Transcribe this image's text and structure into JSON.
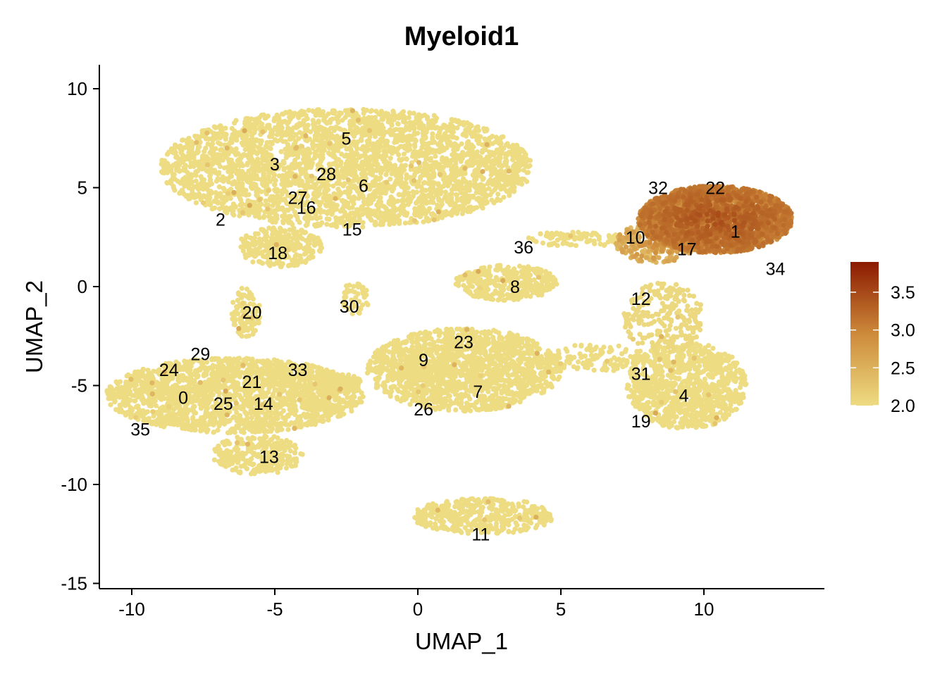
{
  "chart_data": {
    "type": "scatter",
    "title": "Myeloid1",
    "xlabel": "UMAP_1",
    "ylabel": "UMAP_2",
    "xlim": [
      -11,
      14
    ],
    "ylim": [
      -15,
      11
    ],
    "xticks": [
      -10,
      -5,
      0,
      5,
      10
    ],
    "xtick_labels": [
      "-10",
      "-5",
      "0",
      "5",
      "10"
    ],
    "yticks": [
      -15,
      -10,
      -5,
      0,
      5,
      10
    ],
    "ytick_labels": [
      "-15",
      "-10",
      "-5",
      "0",
      "5",
      "10"
    ],
    "grid": false,
    "legend": {
      "position": "right",
      "type": "colorbar",
      "range": [
        2.0,
        3.9
      ],
      "ticks": [
        2.0,
        2.5,
        3.0,
        3.5
      ],
      "tick_labels": [
        "2.0",
        "2.5",
        "3.0",
        "3.5"
      ],
      "colors": [
        "#EEDC82",
        "#CD8A3A",
        "#8B1A00"
      ]
    },
    "clusters": [
      {
        "cx": -2.5,
        "cy": 6.0,
        "rx": 6.5,
        "ry": 3.0,
        "n": 3200,
        "value": 2.0
      },
      {
        "cx": -4.8,
        "cy": 2.0,
        "rx": 1.5,
        "ry": 1.0,
        "n": 300,
        "value": 2.0
      },
      {
        "cx": -6.4,
        "cy": -5.5,
        "rx": 4.5,
        "ry": 1.9,
        "n": 1900,
        "value": 2.0
      },
      {
        "cx": -5.6,
        "cy": -8.5,
        "rx": 1.6,
        "ry": 1.0,
        "n": 280,
        "value": 2.0
      },
      {
        "cx": -6.0,
        "cy": -1.3,
        "rx": 0.5,
        "ry": 1.3,
        "n": 110,
        "value": 2.0
      },
      {
        "cx": -3.4,
        "cy": -4.8,
        "rx": 1.4,
        "ry": 0.5,
        "n": 170,
        "value": 2.0
      },
      {
        "cx": -2.2,
        "cy": -0.6,
        "rx": 0.5,
        "ry": 0.8,
        "n": 45,
        "value": 2.0
      },
      {
        "cx": 0.1,
        "cy": -4.3,
        "rx": 0.9,
        "ry": 0.4,
        "n": 80,
        "value": 2.0
      },
      {
        "cx": 1.6,
        "cy": -4.2,
        "rx": 3.4,
        "ry": 2.1,
        "n": 1500,
        "value": 2.0
      },
      {
        "cx": 3.1,
        "cy": 0.2,
        "rx": 1.8,
        "ry": 0.9,
        "n": 360,
        "value": 2.0
      },
      {
        "cx": 5.5,
        "cy": 2.4,
        "rx": 1.8,
        "ry": 0.4,
        "n": 90,
        "value": 2.0
      },
      {
        "cx": 2.3,
        "cy": -11.6,
        "rx": 2.5,
        "ry": 0.9,
        "n": 420,
        "value": 2.0
      },
      {
        "cx": 8.6,
        "cy": -1.6,
        "rx": 1.4,
        "ry": 1.8,
        "n": 240,
        "value": 2.05
      },
      {
        "cx": 6.2,
        "cy": -3.6,
        "rx": 1.9,
        "ry": 0.7,
        "n": 130,
        "value": 2.0
      },
      {
        "cx": 9.4,
        "cy": -5.0,
        "rx": 2.1,
        "ry": 2.2,
        "n": 950,
        "value": 2.0
      },
      {
        "cx": 8.3,
        "cy": 2.2,
        "rx": 1.4,
        "ry": 1.0,
        "n": 260,
        "value": 2.45
      },
      {
        "cx": 10.4,
        "cy": 3.4,
        "rx": 2.7,
        "ry": 1.7,
        "n": 2600,
        "value": 2.95
      }
    ],
    "cluster_labels": [
      {
        "label": "0",
        "x": -8.2,
        "y": -5.6
      },
      {
        "label": "1",
        "x": 11.1,
        "y": 2.8
      },
      {
        "label": "2",
        "x": -6.9,
        "y": 3.4
      },
      {
        "label": "3",
        "x": -5.0,
        "y": 6.2
      },
      {
        "label": "4",
        "x": 9.3,
        "y": -5.5
      },
      {
        "label": "5",
        "x": -2.5,
        "y": 7.5
      },
      {
        "label": "6",
        "x": -1.9,
        "y": 5.1
      },
      {
        "label": "7",
        "x": 2.1,
        "y": -5.3
      },
      {
        "label": "8",
        "x": 3.4,
        "y": 0.0
      },
      {
        "label": "9",
        "x": 0.2,
        "y": -3.7
      },
      {
        "label": "10",
        "x": 7.6,
        "y": 2.5
      },
      {
        "label": "11",
        "x": 2.2,
        "y": -12.5
      },
      {
        "label": "12",
        "x": 7.8,
        "y": -0.6
      },
      {
        "label": "13",
        "x": -5.2,
        "y": -8.6
      },
      {
        "label": "14",
        "x": -5.4,
        "y": -5.9
      },
      {
        "label": "15",
        "x": -2.3,
        "y": 2.9
      },
      {
        "label": "16",
        "x": -3.9,
        "y": 4.0
      },
      {
        "label": "17",
        "x": 9.4,
        "y": 1.9
      },
      {
        "label": "18",
        "x": -4.9,
        "y": 1.7
      },
      {
        "label": "19",
        "x": 7.8,
        "y": -6.8
      },
      {
        "label": "20",
        "x": -5.8,
        "y": -1.3
      },
      {
        "label": "21",
        "x": -5.8,
        "y": -4.8
      },
      {
        "label": "22",
        "x": 10.4,
        "y": 5.0
      },
      {
        "label": "23",
        "x": 1.6,
        "y": -2.8
      },
      {
        "label": "24",
        "x": -8.7,
        "y": -4.2
      },
      {
        "label": "25",
        "x": -6.8,
        "y": -5.9
      },
      {
        "label": "26",
        "x": 0.2,
        "y": -6.2
      },
      {
        "label": "27",
        "x": -4.2,
        "y": 4.5
      },
      {
        "label": "28",
        "x": -3.2,
        "y": 5.7
      },
      {
        "label": "29",
        "x": -7.6,
        "y": -3.4
      },
      {
        "label": "30",
        "x": -2.4,
        "y": -1.0
      },
      {
        "label": "31",
        "x": 7.8,
        "y": -4.4
      },
      {
        "label": "32",
        "x": 8.4,
        "y": 5.0
      },
      {
        "label": "33",
        "x": -4.2,
        "y": -4.2
      },
      {
        "label": "34",
        "x": 12.5,
        "y": 0.9
      },
      {
        "label": "35",
        "x": -9.7,
        "y": -7.2
      },
      {
        "label": "36",
        "x": 3.7,
        "y": 2.0
      }
    ]
  }
}
